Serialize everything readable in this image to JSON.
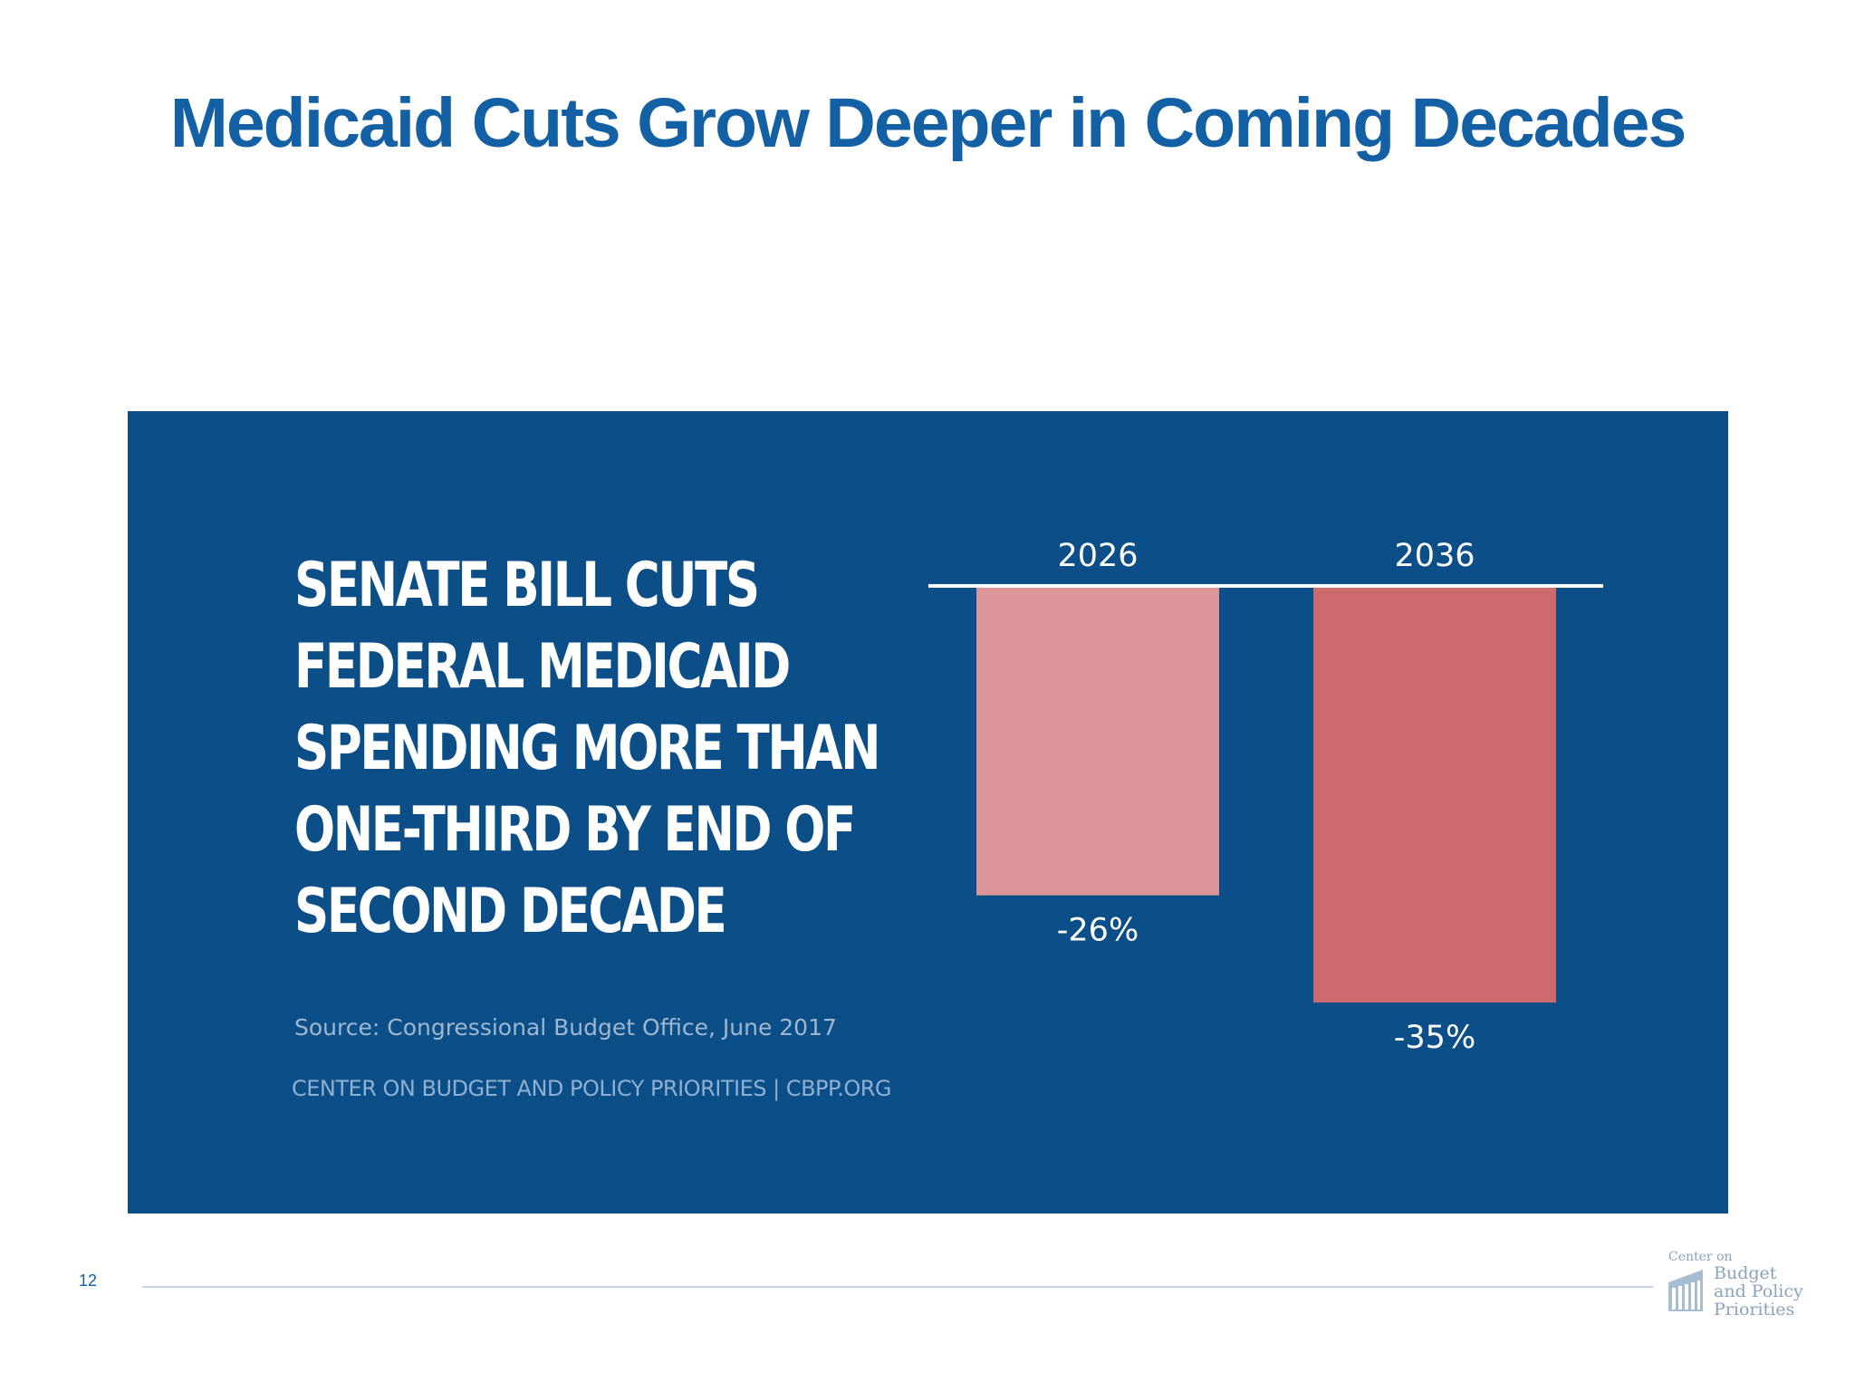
{
  "slide": {
    "title": "Medicaid Cuts Grow Deeper in Coming Decades",
    "page_number": "12"
  },
  "panel": {
    "headline_lines": [
      "SENATE BILL CUTS",
      "FEDERAL MEDICAID",
      "SPENDING MORE THAN",
      "ONE-THIRD BY END OF",
      "SECOND DECADE"
    ],
    "source": "Source: Congressional Budget Office, June 2017",
    "credit": "CENTER ON BUDGET AND POLICY PRIORITIES | CBPP.ORG"
  },
  "footer_logo": {
    "lines": [
      "Center on",
      "Budget",
      "and Policy",
      "Priorities"
    ]
  },
  "colors": {
    "title": "#1460a5",
    "panel_background": "#0c4f88",
    "bar_2026": "#dc9598",
    "bar_2036": "#cc6a6e"
  },
  "chart_data": {
    "type": "bar",
    "categories": [
      "2026",
      "2036"
    ],
    "values": [
      -26,
      -35
    ],
    "value_labels": [
      "-26%",
      "-35%"
    ],
    "ylim": [
      -35,
      0
    ],
    "grid": false
  }
}
